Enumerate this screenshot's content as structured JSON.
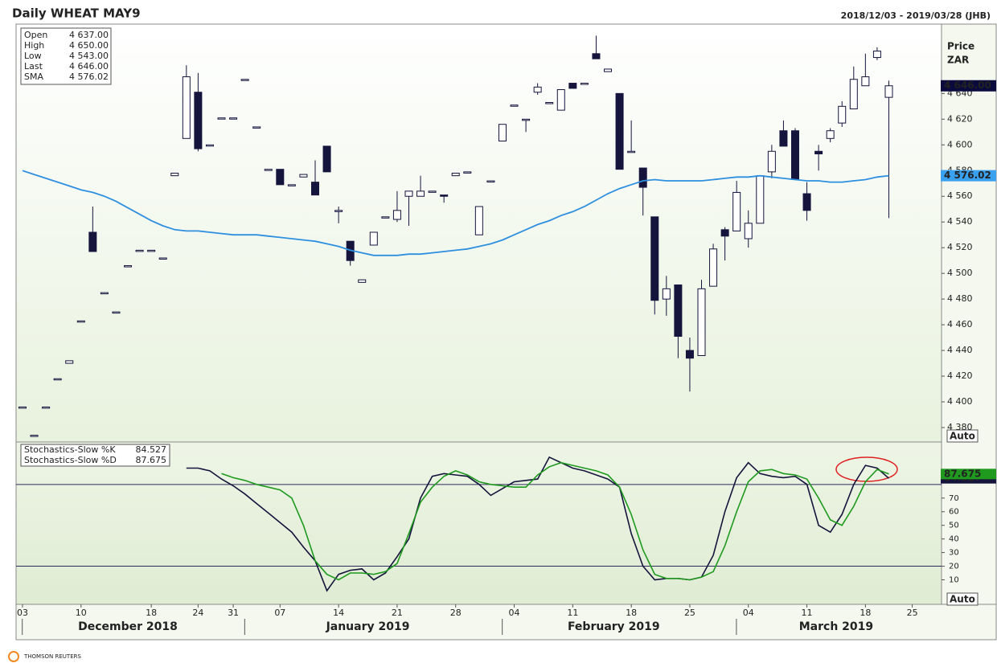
{
  "chart_data": [
    {
      "type": "candlestick",
      "title": "Daily WHEAT MAY9",
      "subtitle": "2018/12/03 - 2019/03/28 (JHB)",
      "axis_title": [
        "Price",
        "ZAR"
      ],
      "scale_mode": "Auto",
      "up_color": "#ffffff",
      "down_color": "#14143c",
      "outline_color": "#14143c",
      "categories": [
        "2018-12-03",
        "2018-12-04",
        "2018-12-05",
        "2018-12-06",
        "2018-12-07",
        "2018-12-10",
        "2018-12-11",
        "2018-12-12",
        "2018-12-13",
        "2018-12-14",
        "2018-12-17",
        "2018-12-18",
        "2018-12-19",
        "2018-12-20",
        "2018-12-21",
        "2018-12-24",
        "2018-12-27",
        "2018-12-28",
        "2018-12-31",
        "2019-01-02",
        "2019-01-03",
        "2019-01-04",
        "2019-01-07",
        "2019-01-08",
        "2019-01-09",
        "2019-01-10",
        "2019-01-11",
        "2019-01-14",
        "2019-01-15",
        "2019-01-16",
        "2019-01-17",
        "2019-01-18",
        "2019-01-21",
        "2019-01-22",
        "2019-01-23",
        "2019-01-24",
        "2019-01-25",
        "2019-01-28",
        "2019-01-29",
        "2019-01-30",
        "2019-01-31",
        "2019-02-01",
        "2019-02-04",
        "2019-02-05",
        "2019-02-06",
        "2019-02-07",
        "2019-02-08",
        "2019-02-11",
        "2019-02-12",
        "2019-02-13",
        "2019-02-14",
        "2019-02-15",
        "2019-02-18",
        "2019-02-19",
        "2019-02-20",
        "2019-02-21",
        "2019-02-22",
        "2019-02-25",
        "2019-02-26",
        "2019-02-27",
        "2019-02-28",
        "2019-03-01",
        "2019-03-04",
        "2019-03-05",
        "2019-03-06",
        "2019-03-07",
        "2019-03-08",
        "2019-03-11",
        "2019-03-12",
        "2019-03-13",
        "2019-03-14",
        "2019-03-15",
        "2019-03-18",
        "2019-03-19",
        "2019-03-20",
        "2019-03-22",
        "2019-03-25",
        "2019-03-26",
        "2019-03-27"
      ],
      "open": [
        4396,
        4374,
        4396,
        4418,
        4430,
        4463,
        4532,
        4485,
        4470,
        4506,
        4518,
        4518,
        4512,
        4576,
        4605,
        4641,
        4600,
        4621,
        4621,
        4651,
        4614,
        4581,
        4581,
        4569,
        4575,
        4571,
        4599,
        4549,
        4525,
        4493,
        4522,
        4544,
        4542,
        4560,
        4560,
        4564,
        4561,
        4576,
        4579,
        4530,
        4572,
        4603,
        4631,
        4620,
        4641,
        4633,
        4627,
        4648,
        4648,
        4671,
        4657,
        4640,
        4595,
        4582,
        4544,
        4480,
        4491,
        4440,
        4436,
        4490,
        4534,
        4533,
        4527,
        4539,
        4579,
        4611,
        4611,
        4562,
        4595,
        4605,
        4617,
        4628,
        4646,
        4668,
        4637,
        null,
        null,
        null,
        null
      ],
      "high": [
        4396,
        4374,
        4396,
        4418,
        4432,
        4463,
        4552,
        4485,
        4470,
        4506,
        4518,
        4518,
        4512,
        4578,
        4662,
        4656,
        4600,
        4621,
        4621,
        4651,
        4614,
        4581,
        4581,
        4569,
        4577,
        4588,
        4599,
        4552,
        4525,
        4495,
        4532,
        4544,
        4564,
        4564,
        4576,
        4564,
        4561,
        4578,
        4579,
        4552,
        4572,
        4616,
        4631,
        4620,
        4648,
        4633,
        4643,
        4648,
        4648,
        4685,
        4659,
        4640,
        4619,
        4582,
        4544,
        4498,
        4491,
        4450,
        4495,
        4523,
        4536,
        4572,
        4549,
        4576,
        4600,
        4619,
        4613,
        4571,
        4600,
        4613,
        4634,
        4661,
        4671,
        4676,
        4650,
        null,
        null,
        null,
        null
      ],
      "low": [
        4396,
        4374,
        4396,
        4418,
        4430,
        4463,
        4517,
        4485,
        4470,
        4506,
        4518,
        4518,
        4512,
        4576,
        4605,
        4595,
        4600,
        4621,
        4621,
        4651,
        4614,
        4581,
        4569,
        4569,
        4575,
        4561,
        4579,
        4539,
        4506,
        4493,
        4522,
        4544,
        4540,
        4537,
        4560,
        4564,
        4555,
        4576,
        4579,
        4530,
        4572,
        4603,
        4631,
        4610,
        4639,
        4633,
        4627,
        4644,
        4648,
        4667,
        4657,
        4581,
        4595,
        4545,
        4468,
        4467,
        4434,
        4408,
        4436,
        4490,
        4510,
        4533,
        4520,
        4539,
        4574,
        4599,
        4573,
        4541,
        4580,
        4602,
        4614,
        4628,
        4646,
        4666,
        4543,
        null,
        null,
        null,
        null
      ],
      "close": [
        4396,
        4374,
        4396,
        4418,
        4432,
        4463,
        4517,
        4485,
        4470,
        4506,
        4518,
        4518,
        4512,
        4578,
        4653,
        4597,
        4600,
        4621,
        4621,
        4651,
        4614,
        4581,
        4569,
        4569,
        4577,
        4561,
        4579,
        4549,
        4510,
        4495,
        4532,
        4544,
        4549,
        4564,
        4564,
        4564,
        4560,
        4578,
        4579,
        4552,
        4572,
        4616,
        4631,
        4620,
        4645,
        4633,
        4643,
        4644,
        4648,
        4667,
        4659,
        4581,
        4595,
        4567,
        4479,
        4488,
        4451,
        4434,
        4488,
        4519,
        4529,
        4563,
        4539,
        4576,
        4595,
        4599,
        4573,
        4549,
        4593,
        4611,
        4630,
        4651,
        4653,
        4673,
        4646,
        null,
        null,
        null,
        null
      ],
      "series": [
        {
          "name": "SMA",
          "color": "#2e8fe0",
          "values": [
            4580,
            4577,
            4574,
            4571,
            4568,
            4565,
            4563,
            4560,
            4556,
            4551,
            4546,
            4541,
            4537,
            4534,
            4533,
            4533,
            4532,
            4531,
            4530,
            4530,
            4530,
            4529,
            4528,
            4527,
            4526,
            4525,
            4523,
            4521,
            4518,
            4516,
            4514,
            4514,
            4514,
            4515,
            4515,
            4516,
            4517,
            4518,
            4519,
            4521,
            4523,
            4526,
            4530,
            4534,
            4538,
            4541,
            4545,
            4548,
            4552,
            4557,
            4562,
            4566,
            4569,
            4572,
            4573,
            4572,
            4572,
            4572,
            4572,
            4573,
            4574,
            4575,
            4575,
            4576,
            4575,
            4574,
            4573,
            4572,
            4572,
            4571,
            4571,
            4572,
            4573,
            4575,
            4576.02,
            null,
            null,
            null,
            null
          ]
        }
      ],
      "info": [
        {
          "name": "Open",
          "label": "4 637.00",
          "color": "#000000"
        },
        {
          "name": "High",
          "label": "4 650.00",
          "color": "#000000"
        },
        {
          "name": "Low",
          "label": "4 543.00",
          "color": "#000000"
        },
        {
          "name": "Last",
          "label": "4 646.00",
          "color": "#000000"
        },
        {
          "name": "SMA",
          "label": "4 576.02",
          "color": "#2e8fe0"
        }
      ],
      "price_labels": [
        {
          "value": 4646,
          "label": "4 646.00",
          "color": "#0a0a3c"
        },
        {
          "value": 4576.02,
          "label": "4 576.02",
          "color": "#3aa0f0"
        }
      ],
      "ylim": [
        4370,
        4694
      ],
      "yticks": [
        {
          "value": 4380,
          "label": "4 380"
        },
        {
          "value": 4400,
          "label": "4 400"
        },
        {
          "value": 4420,
          "label": "4 420"
        },
        {
          "value": 4440,
          "label": "4 440"
        },
        {
          "value": 4460,
          "label": "4 460"
        },
        {
          "value": 4480,
          "label": "4 480"
        },
        {
          "value": 4500,
          "label": "4 500"
        },
        {
          "value": 4520,
          "label": "4 520"
        },
        {
          "value": 4540,
          "label": "4 540"
        },
        {
          "value": 4560,
          "label": "4 560"
        },
        {
          "value": 4580,
          "label": "4 580"
        },
        {
          "value": 4600,
          "label": "4 600"
        },
        {
          "value": 4620,
          "label": "4 620"
        },
        {
          "value": 4640,
          "label": "4 640"
        }
      ],
      "xticks": [
        {
          "value": "2018-12-03",
          "label": "03"
        },
        {
          "value": "2018-12-10",
          "label": "10"
        },
        {
          "value": "2018-12-18",
          "label": "18"
        },
        {
          "value": "2018-12-24",
          "label": "24"
        },
        {
          "value": "2018-12-31",
          "label": "31"
        },
        {
          "value": "2019-01-07",
          "label": "07"
        },
        {
          "value": "2019-01-14",
          "label": "14"
        },
        {
          "value": "2019-01-21",
          "label": "21"
        },
        {
          "value": "2019-01-28",
          "label": "28"
        },
        {
          "value": "2019-02-04",
          "label": "04"
        },
        {
          "value": "2019-02-11",
          "label": "11"
        },
        {
          "value": "2019-02-18",
          "label": "18"
        },
        {
          "value": "2019-02-25",
          "label": "25"
        },
        {
          "value": "2019-03-04",
          "label": "04"
        },
        {
          "value": "2019-03-11",
          "label": "11"
        },
        {
          "value": "2019-03-18",
          "label": "18"
        },
        {
          "value": "2019-03-25",
          "label": "25"
        }
      ],
      "months": [
        {
          "value": "2018-12",
          "label": "December 2018"
        },
        {
          "value": "2019-01",
          "label": "January 2019"
        },
        {
          "value": "2019-02",
          "label": "February 2019"
        },
        {
          "value": "2019-03",
          "label": "March 2019"
        }
      ],
      "source": "THOMSON REUTERS"
    },
    {
      "type": "line",
      "scale_mode": "Auto",
      "series": [
        {
          "name": "Stochastics-Slow %K",
          "color": "#14143c",
          "last_label": "84.527",
          "values": [
            null,
            null,
            null,
            null,
            null,
            null,
            null,
            null,
            null,
            null,
            null,
            null,
            null,
            null,
            92,
            92,
            90,
            84,
            79,
            73,
            66,
            59,
            52,
            45,
            34,
            24,
            2,
            14,
            17,
            18,
            10,
            15,
            27,
            40,
            70,
            86,
            88,
            87,
            86,
            80,
            72,
            77,
            82,
            83,
            84,
            100,
            96,
            92,
            90,
            87,
            84,
            78,
            44,
            20,
            10,
            11,
            11,
            10,
            12,
            28,
            60,
            85,
            96,
            88,
            86,
            85,
            86,
            80,
            50,
            45,
            58,
            80,
            94,
            92,
            84.527,
            null,
            null,
            null,
            null
          ]
        },
        {
          "name": "Stochastics-Slow %D",
          "color": "#1f9a1f",
          "last_label": "87.675",
          "values": [
            null,
            null,
            null,
            null,
            null,
            null,
            null,
            null,
            null,
            null,
            null,
            null,
            null,
            null,
            null,
            null,
            null,
            88,
            85,
            83,
            80,
            78,
            76,
            70,
            50,
            24,
            14,
            10,
            15,
            15,
            14,
            16,
            22,
            44,
            67,
            78,
            86,
            90,
            87,
            82,
            80,
            79,
            78,
            78,
            87,
            93,
            96,
            94,
            92,
            90,
            87,
            78,
            58,
            32,
            14,
            11,
            11,
            10,
            12,
            16,
            35,
            60,
            82,
            90,
            91,
            88,
            87,
            84,
            70,
            54,
            50,
            64,
            82,
            91,
            87.675,
            null,
            null,
            null,
            null
          ]
        }
      ],
      "hlines": [
        20,
        80
      ],
      "ylim": [
        -8,
        110
      ],
      "yticks": [
        10,
        20,
        30,
        40,
        50,
        60,
        70
      ]
    }
  ]
}
